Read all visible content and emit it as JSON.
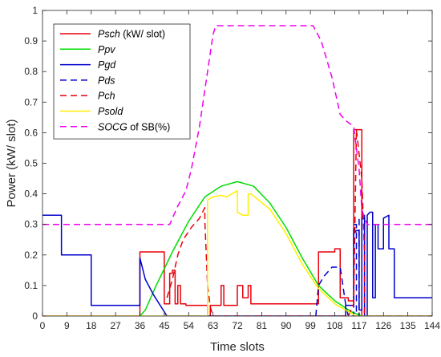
{
  "chart_data": {
    "type": "line",
    "xlabel": "Time slots",
    "ylabel": "Power (kW/ slot)",
    "xlim": [
      0,
      144
    ],
    "ylim": [
      0,
      1
    ],
    "x_ticks": [
      0,
      9,
      18,
      27,
      36,
      45,
      54,
      63,
      72,
      81,
      90,
      99,
      108,
      117,
      126,
      135,
      144
    ],
    "x_tick_labels": [
      "0",
      "9",
      "18",
      "27",
      "36",
      "45",
      "54",
      "63",
      "72",
      "81",
      "90",
      "99",
      "108",
      "117",
      "126",
      "135",
      "144"
    ],
    "y_ticks": [
      0,
      0.1,
      0.2,
      0.3,
      0.4,
      0.5,
      0.6,
      0.7,
      0.8,
      0.9,
      1
    ],
    "y_tick_labels": [
      "0",
      "0.1",
      "0.2",
      "0.3",
      "0.4",
      "0.5",
      "0.6",
      "0.7",
      "0.8",
      "0.9",
      "1"
    ],
    "grid": false,
    "legend_position": "top-left",
    "series": [
      {
        "name": "Psch",
        "legend_suffix": " (kW/ slot)",
        "color": "#e8000b",
        "dash": "solid",
        "points": [
          [
            0,
            0
          ],
          [
            36,
            0
          ],
          [
            36,
            0.21
          ],
          [
            45,
            0.21
          ],
          [
            45,
            0.04
          ],
          [
            47,
            0.04
          ],
          [
            47,
            0.14
          ],
          [
            48,
            0.14
          ],
          [
            48,
            0.15
          ],
          [
            49,
            0.15
          ],
          [
            49,
            0.04
          ],
          [
            50,
            0.04
          ],
          [
            50,
            0.1
          ],
          [
            51,
            0.1
          ],
          [
            51,
            0.04
          ],
          [
            53,
            0.04
          ],
          [
            53,
            0.035
          ],
          [
            61,
            0.035
          ],
          [
            61,
            0
          ],
          [
            62,
            0
          ],
          [
            62,
            0.035
          ],
          [
            66,
            0.035
          ],
          [
            66,
            0.1
          ],
          [
            67,
            0.1
          ],
          [
            67,
            0.035
          ],
          [
            72,
            0.035
          ],
          [
            72,
            0.1
          ],
          [
            74,
            0.1
          ],
          [
            74,
            0.06
          ],
          [
            76,
            0.06
          ],
          [
            76,
            0.1
          ],
          [
            77,
            0.1
          ],
          [
            77,
            0.04
          ],
          [
            102,
            0.04
          ],
          [
            102,
            0.21
          ],
          [
            108,
            0.21
          ],
          [
            108,
            0.22
          ],
          [
            110,
            0.22
          ],
          [
            110,
            0.06
          ],
          [
            113,
            0.06
          ],
          [
            113,
            0.05
          ],
          [
            115,
            0.05
          ],
          [
            115,
            0.61
          ],
          [
            118,
            0.61
          ],
          [
            118,
            0
          ],
          [
            144,
            0
          ]
        ]
      },
      {
        "name": "Ppv",
        "color": "#00dd00",
        "dash": "solid",
        "points": [
          [
            36,
            0
          ],
          [
            38,
            0.02
          ],
          [
            42,
            0.1
          ],
          [
            48,
            0.21
          ],
          [
            54,
            0.31
          ],
          [
            60,
            0.39
          ],
          [
            66,
            0.425
          ],
          [
            72,
            0.44
          ],
          [
            78,
            0.425
          ],
          [
            84,
            0.37
          ],
          [
            90,
            0.29
          ],
          [
            96,
            0.19
          ],
          [
            102,
            0.1
          ],
          [
            108,
            0.05
          ],
          [
            114,
            0.015
          ],
          [
            118,
            0
          ]
        ]
      },
      {
        "name": "Pgd",
        "color": "#0000cc",
        "dash": "solid",
        "points": [
          [
            0,
            0.33
          ],
          [
            7,
            0.33
          ],
          [
            7,
            0.2
          ],
          [
            18,
            0.2
          ],
          [
            18,
            0.035
          ],
          [
            36,
            0.035
          ],
          [
            36,
            0.19
          ],
          [
            38,
            0.12
          ],
          [
            41,
            0.07
          ],
          [
            46,
            0
          ],
          [
            112,
            0
          ],
          [
            112,
            0.035
          ],
          [
            115,
            0.035
          ],
          [
            115,
            0.27
          ],
          [
            116,
            0.28
          ],
          [
            117,
            0.28
          ],
          [
            117,
            0.02
          ],
          [
            118,
            0.02
          ],
          [
            118,
            0.32
          ],
          [
            119,
            0.32
          ],
          [
            119,
            0
          ],
          [
            120,
            0
          ],
          [
            120,
            0.33
          ],
          [
            121,
            0.34
          ],
          [
            122,
            0.34
          ],
          [
            122,
            0.06
          ],
          [
            123,
            0.06
          ],
          [
            123,
            0.3
          ],
          [
            124,
            0.3
          ],
          [
            124,
            0.22
          ],
          [
            126,
            0.22
          ],
          [
            126,
            0.32
          ],
          [
            128,
            0.33
          ],
          [
            128,
            0.22
          ],
          [
            130,
            0.22
          ],
          [
            130,
            0.06
          ],
          [
            144,
            0.06
          ]
        ]
      },
      {
        "name": "Pds",
        "color": "#0000cc",
        "dash": "dashed",
        "points": [
          [
            101,
            0
          ],
          [
            102,
            0.1
          ],
          [
            104,
            0.13
          ],
          [
            107,
            0.16
          ],
          [
            110,
            0.16
          ],
          [
            112,
            0.04
          ],
          [
            113,
            0
          ],
          [
            115,
            0
          ],
          [
            115,
            0.3
          ],
          [
            116,
            0.3
          ],
          [
            116,
            0
          ],
          [
            117,
            0
          ],
          [
            117,
            0.32
          ],
          [
            119,
            0.33
          ],
          [
            119,
            0
          ],
          [
            144,
            0
          ]
        ]
      },
      {
        "name": "Pch",
        "color": "#e8000b",
        "dash": "dashed",
        "points": [
          [
            46,
            0.06
          ],
          [
            48,
            0.12
          ],
          [
            50,
            0.2
          ],
          [
            52,
            0.25
          ],
          [
            55,
            0.29
          ],
          [
            58,
            0.32
          ],
          [
            60,
            0.355
          ],
          [
            60,
            0.31
          ],
          [
            61,
            0.1
          ],
          [
            62,
            0.03
          ],
          [
            63,
            0
          ],
          [
            113,
            0
          ],
          [
            115,
            0.04
          ],
          [
            116,
            0.61
          ],
          [
            118,
            0.45
          ],
          [
            119,
            0.2
          ],
          [
            119,
            0
          ]
        ]
      },
      {
        "name": "Psold",
        "color": "#ffee00",
        "dash": "solid",
        "points": [
          [
            0,
            0
          ],
          [
            61,
            0
          ],
          [
            61,
            0.38
          ],
          [
            63,
            0.39
          ],
          [
            66,
            0.395
          ],
          [
            68,
            0.39
          ],
          [
            70,
            0.4
          ],
          [
            72,
            0.41
          ],
          [
            72,
            0.34
          ],
          [
            74,
            0.33
          ],
          [
            76,
            0.33
          ],
          [
            76,
            0.4
          ],
          [
            77,
            0.4
          ],
          [
            84,
            0.35
          ],
          [
            90,
            0.27
          ],
          [
            96,
            0.17
          ],
          [
            102,
            0.09
          ],
          [
            108,
            0.04
          ],
          [
            114,
            0.01
          ],
          [
            116,
            0
          ],
          [
            144,
            0
          ]
        ]
      },
      {
        "name": "SOCG",
        "legend_suffix": " of SB(%)",
        "color": "#ee00ee",
        "dash": "dashed",
        "points": [
          [
            0,
            0.3
          ],
          [
            47,
            0.3
          ],
          [
            50,
            0.36
          ],
          [
            53,
            0.41
          ],
          [
            55,
            0.48
          ],
          [
            58,
            0.62
          ],
          [
            61,
            0.8
          ],
          [
            63,
            0.92
          ],
          [
            64,
            0.95
          ],
          [
            100,
            0.95
          ],
          [
            103,
            0.9
          ],
          [
            107,
            0.78
          ],
          [
            110,
            0.66
          ],
          [
            112,
            0.64
          ],
          [
            115,
            0.62
          ],
          [
            117,
            0.48
          ],
          [
            118,
            0.35
          ],
          [
            119,
            0.32
          ],
          [
            120,
            0.3
          ],
          [
            144,
            0.3
          ]
        ]
      }
    ]
  }
}
